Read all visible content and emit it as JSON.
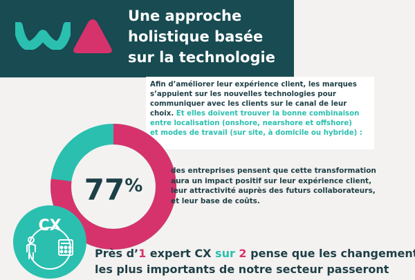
{
  "colors": {
    "header_bg": "#184b52",
    "teal": "#2bbfb0",
    "pink": "#d6336c",
    "dark_text": "#1f3f46",
    "page_bg": "#f3f2f1"
  },
  "header": {
    "title_line1": "Une approche",
    "title_line2": "holistique basée",
    "title_line3": "sur la technologie",
    "logo_icon": "brand-w-triangle-logo"
  },
  "intro": {
    "line1": "Afin d’améliorer leur expérience client, les marques",
    "line2": "s’appuient sur les nouvelles technologies pour",
    "line3": "communiquer avec les clients sur le canal de leur",
    "line4": "choix.",
    "line4_teal": "Et elles doivent trouver la bonne combinaison",
    "line5": "entre localisation (onshore, nearshore et offshore)",
    "line6": "et modes de travail (sur site, à domicile ou hybride) :"
  },
  "stat": {
    "value": "77",
    "unit": "%",
    "fraction": 0.77,
    "line1": "des entreprises pensent que cette transformation",
    "line2": "aura un impact positif sur leur expérience client,",
    "line3": "leur attractivité auprès des futurs collaborateurs,",
    "line4": "et leur base de coûts."
  },
  "cx_badge": {
    "label": "CX",
    "icon": "cx-person-calculator-icon"
  },
  "expert": {
    "pre": "Près d’",
    "num1": "1",
    "mid1": " expert CX ",
    "sur": "sur",
    "num2": " 2",
    "post": " pense que les changements",
    "line2": "les plus importants de notre secteur passeront"
  }
}
